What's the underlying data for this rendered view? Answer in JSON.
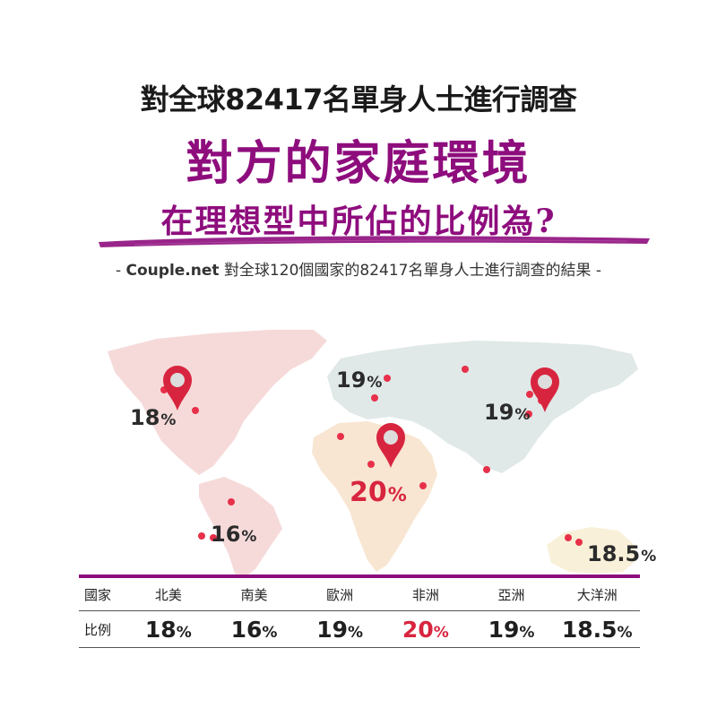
{
  "header": {
    "line1": "對全球82417名單身人士進行調查",
    "line2": "對方的家庭環境",
    "line3": "在理想型中所佔的比例為?",
    "source_brand": "Couple.net",
    "source_text": "對全球120個國家的82417名單身人士進行調查的結果",
    "source_dash_left": "-",
    "source_dash_right": "-"
  },
  "colors": {
    "accent": "#8e0d7d",
    "highlight": "#d8253f",
    "north_america": "#f6dada",
    "south_america": "#f6dada",
    "europe": "#e0e8e8",
    "africa": "#f8e6d2",
    "asia": "#e0e8e8",
    "oceania": "#f8f0d8"
  },
  "chart_data": {
    "type": "table",
    "row_header": "國家",
    "value_header": "比例",
    "unit": "%",
    "categories": [
      "北美",
      "南美",
      "歐洲",
      "非洲",
      "亞洲",
      "大洋洲"
    ],
    "values": [
      18,
      16,
      19,
      20,
      19,
      18.5
    ],
    "highlight": "非洲"
  },
  "map": {
    "labels": [
      {
        "region": "北美",
        "value": "18",
        "unit": "%"
      },
      {
        "region": "南美",
        "value": "16",
        "unit": "%"
      },
      {
        "region": "歐洲",
        "value": "19",
        "unit": "%"
      },
      {
        "region": "非洲",
        "value": "20",
        "unit": "%"
      },
      {
        "region": "亞洲",
        "value": "19",
        "unit": "%"
      },
      {
        "region": "大洋洲",
        "value": "18.5",
        "unit": "%"
      }
    ],
    "pin_icon": "map-pin-icon"
  },
  "table": {
    "row1_header": "國家",
    "row2_header": "比例",
    "regions": [
      "北美",
      "南美",
      "歐洲",
      "非洲",
      "亞洲",
      "大洋洲"
    ],
    "values": [
      "18",
      "16",
      "19",
      "20",
      "19",
      "18.5"
    ],
    "unit": "%"
  }
}
